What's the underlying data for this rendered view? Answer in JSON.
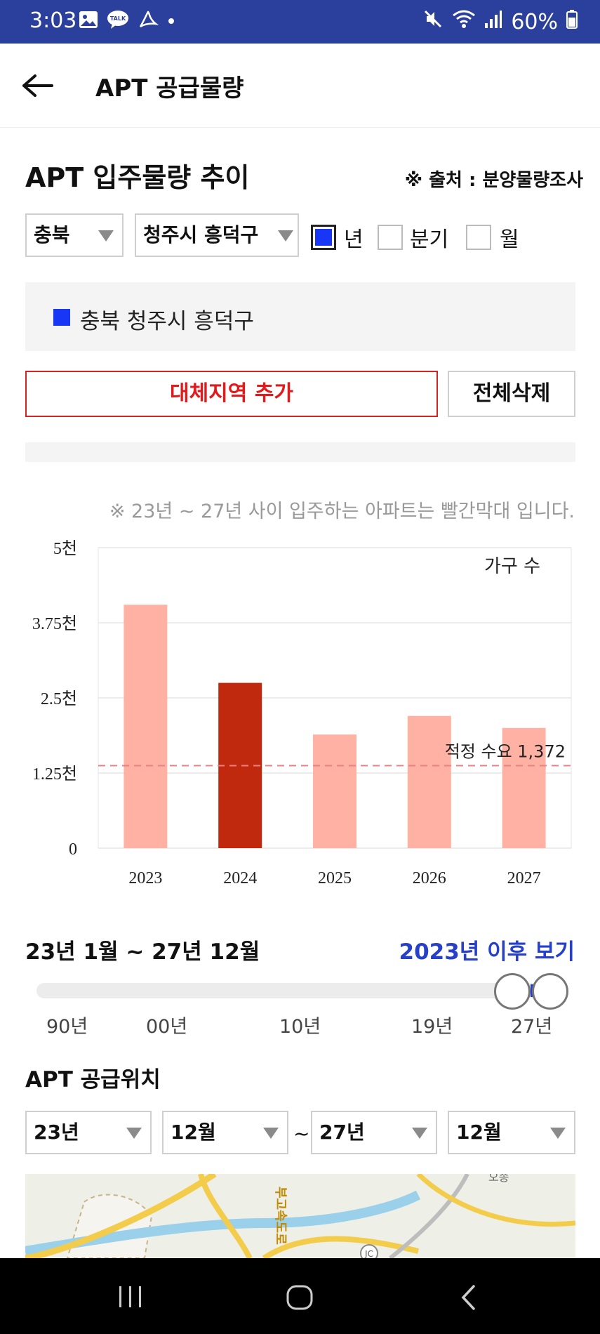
{
  "status_bar": {
    "time": "3:03",
    "battery": "60%",
    "talk_badge": "TALK",
    "icons": [
      "gallery-icon",
      "kakaotalk-icon",
      "acrobat-icon",
      "dot-icon",
      "mute-icon",
      "wifi-icon",
      "signal-icon",
      "battery-icon"
    ]
  },
  "header": {
    "title": "APT 공급물량"
  },
  "section": {
    "title": "APT 입주물량 추이",
    "source": "※ 출처 : 분양물량조사"
  },
  "filters": {
    "region": "충북",
    "district": "청주시 흥덕구",
    "periods": [
      {
        "label": "년",
        "checked": true
      },
      {
        "label": "분기",
        "checked": false
      },
      {
        "label": "월",
        "checked": false
      }
    ]
  },
  "selected_region": {
    "label": "충북 청주시 흥덕구",
    "color": "#1736f5"
  },
  "buttons": {
    "add_region": "대체지역 추가",
    "delete_all": "전체삭제"
  },
  "note": "※ 23년 ~ 27년 사이 입주하는 아파트는 빨간막대 입니다.",
  "chart_data": {
    "type": "bar",
    "categories": [
      "2023",
      "2024",
      "2025",
      "2026",
      "2027"
    ],
    "values": [
      4050,
      2750,
      1890,
      2200,
      2000
    ],
    "colors": [
      "#ffb1a3",
      "#c1290f",
      "#ffb1a3",
      "#ffb1a3",
      "#ffb1a3"
    ],
    "y_ticks": [
      "0",
      "1.25천",
      "2.5천",
      "3.75천",
      "5천"
    ],
    "ylim": [
      0,
      5000
    ],
    "series_label": "가구 수",
    "reference_line": {
      "label": "적정 수요 1,372",
      "value": 1372,
      "color": "#f08080"
    },
    "grid": true
  },
  "range": {
    "title": "23년 1월 ~ 27년 12월",
    "link": "2023년 이후 보기"
  },
  "slider": {
    "ticks": [
      "90년",
      "00년",
      "10년",
      "19년",
      "27년"
    ]
  },
  "location": {
    "title": "APT 공급위치",
    "from_year": "23년",
    "from_month": "12월",
    "tilde": "~",
    "to_year": "27년",
    "to_month": "12월"
  },
  "map": {
    "road_label": "부고속도로",
    "jc_label": "JC",
    "top_label": "오송"
  }
}
